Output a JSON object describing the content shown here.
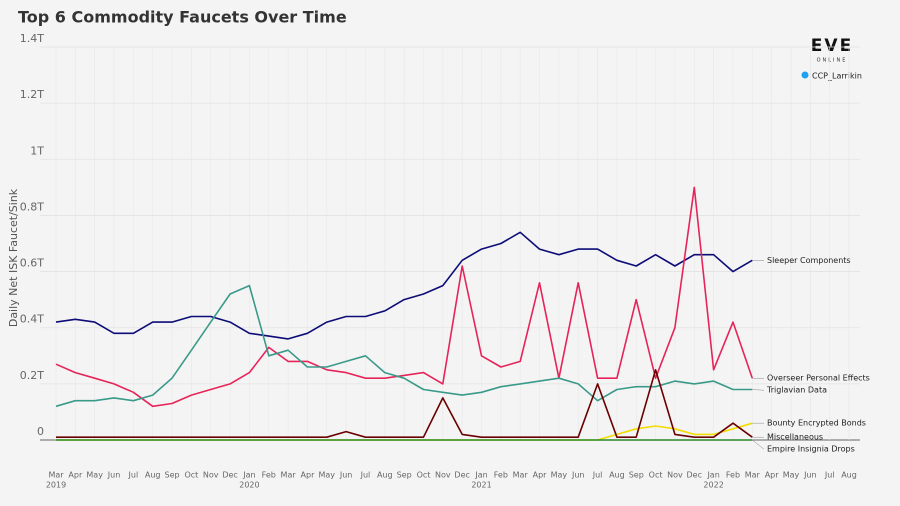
{
  "chart_data": {
    "type": "line",
    "title": "Top 6 Commodity Faucets Over Time",
    "ylabel": "Daily Net ISK Faucet/Sink",
    "brand": {
      "logo": "EVE",
      "sub": "ONLINE",
      "handle": "CCP_Larrikin"
    },
    "x": [
      "2019-03",
      "2019-04",
      "2019-05",
      "2019-06",
      "2019-07",
      "2019-08",
      "2019-09",
      "2019-10",
      "2019-11",
      "2019-12",
      "2020-01",
      "2020-02",
      "2020-03",
      "2020-04",
      "2020-05",
      "2020-06",
      "2020-07",
      "2020-08",
      "2020-09",
      "2020-10",
      "2020-11",
      "2020-12",
      "2021-01",
      "2021-02",
      "2021-03",
      "2021-04",
      "2021-05",
      "2021-06",
      "2021-07",
      "2021-08",
      "2021-09",
      "2021-10",
      "2021-11",
      "2021-12",
      "2022-01",
      "2022-02",
      "2022-03"
    ],
    "xlim": [
      "2019-03",
      "2022-08"
    ],
    "xticks": [
      {
        "value": "2019-03",
        "label": "Mar"
      },
      {
        "value": "2019-04",
        "label": "Apr"
      },
      {
        "value": "2019-05",
        "label": "May"
      },
      {
        "value": "2019-06",
        "label": "Jun"
      },
      {
        "value": "2019-07",
        "label": "Jul"
      },
      {
        "value": "2019-08",
        "label": "Aug"
      },
      {
        "value": "2019-09",
        "label": "Sep"
      },
      {
        "value": "2019-10",
        "label": "Oct"
      },
      {
        "value": "2019-11",
        "label": "Nov"
      },
      {
        "value": "2019-12",
        "label": "Dec"
      },
      {
        "value": "2020-01",
        "label": "Jan"
      },
      {
        "value": "2020-02",
        "label": "Feb"
      },
      {
        "value": "2020-03",
        "label": "Mar"
      },
      {
        "value": "2020-04",
        "label": "Apr"
      },
      {
        "value": "2020-05",
        "label": "May"
      },
      {
        "value": "2020-06",
        "label": "Jun"
      },
      {
        "value": "2020-07",
        "label": "Jul"
      },
      {
        "value": "2020-08",
        "label": "Aug"
      },
      {
        "value": "2020-09",
        "label": "Sep"
      },
      {
        "value": "2020-10",
        "label": "Oct"
      },
      {
        "value": "2020-11",
        "label": "Nov"
      },
      {
        "value": "2020-12",
        "label": "Dec"
      },
      {
        "value": "2021-01",
        "label": "Jan"
      },
      {
        "value": "2021-02",
        "label": "Feb"
      },
      {
        "value": "2021-03",
        "label": "Mar"
      },
      {
        "value": "2021-04",
        "label": "Apr"
      },
      {
        "value": "2021-05",
        "label": "May"
      },
      {
        "value": "2021-06",
        "label": "Jun"
      },
      {
        "value": "2021-07",
        "label": "Jul"
      },
      {
        "value": "2021-08",
        "label": "Aug"
      },
      {
        "value": "2021-09",
        "label": "Sep"
      },
      {
        "value": "2021-10",
        "label": "Oct"
      },
      {
        "value": "2021-11",
        "label": "Nov"
      },
      {
        "value": "2021-12",
        "label": "Dec"
      },
      {
        "value": "2022-01",
        "label": "Jan"
      },
      {
        "value": "2022-02",
        "label": "Feb"
      },
      {
        "value": "2022-03",
        "label": "Mar"
      },
      {
        "value": "2022-04",
        "label": "Apr"
      },
      {
        "value": "2022-05",
        "label": "May"
      },
      {
        "value": "2022-06",
        "label": "Jun"
      },
      {
        "value": "2022-07",
        "label": "Jul"
      },
      {
        "value": "2022-08",
        "label": "Aug"
      }
    ],
    "year_labels": [
      {
        "value": "2019-03",
        "label": "2019"
      },
      {
        "value": "2020-01",
        "label": "2020"
      },
      {
        "value": "2021-01",
        "label": "2021"
      },
      {
        "value": "2022-01",
        "label": "2022"
      }
    ],
    "ylim": [
      0,
      1.4
    ],
    "yticks": [
      0,
      {
        "value": 0.2,
        "label": "0.2T"
      },
      {
        "value": 0.4,
        "label": "0.4T"
      },
      {
        "value": 0.6,
        "label": "0.6T"
      },
      {
        "value": 0.8,
        "label": "0.8T"
      },
      {
        "value": 1,
        "label": "1T"
      },
      {
        "value": 1.2,
        "label": "1.2T"
      },
      {
        "value": 1.4,
        "label": "1.4T"
      }
    ],
    "grid": true,
    "series": [
      {
        "name": "Sleeper Components",
        "color": "#0c0c78",
        "values": [
          0.42,
          0.43,
          0.42,
          0.38,
          0.38,
          0.42,
          0.42,
          0.44,
          0.44,
          0.42,
          0.38,
          0.37,
          0.36,
          0.38,
          0.42,
          0.44,
          0.44,
          0.46,
          0.5,
          0.52,
          0.55,
          0.64,
          0.68,
          0.7,
          0.74,
          0.68,
          0.66,
          0.68,
          0.68,
          0.64,
          0.62,
          0.66,
          0.62,
          0.66,
          0.66,
          0.6,
          0.64
        ]
      },
      {
        "name": "Overseer Personal Effects",
        "color": "#e6245a",
        "values": [
          0.27,
          0.24,
          0.22,
          0.2,
          0.17,
          0.12,
          0.13,
          0.16,
          0.18,
          0.2,
          0.24,
          0.33,
          0.28,
          0.28,
          0.25,
          0.24,
          0.22,
          0.22,
          0.23,
          0.24,
          0.2,
          0.62,
          0.3,
          0.26,
          0.28,
          0.56,
          0.22,
          0.56,
          0.22,
          0.22,
          0.5,
          0.22,
          0.4,
          0.9,
          0.25,
          0.42,
          0.22
        ]
      },
      {
        "name": "Triglavian Data",
        "color": "#3a9a8a",
        "values": [
          0.12,
          0.14,
          0.14,
          0.15,
          0.14,
          0.16,
          0.22,
          0.32,
          0.42,
          0.52,
          0.55,
          0.3,
          0.32,
          0.26,
          0.26,
          0.28,
          0.3,
          0.24,
          0.22,
          0.18,
          0.17,
          0.16,
          0.17,
          0.19,
          0.2,
          0.21,
          0.22,
          0.2,
          0.14,
          0.18,
          0.19,
          0.19,
          0.21,
          0.2,
          0.21,
          0.18,
          0.18
        ]
      },
      {
        "name": "Bounty Encrypted Bonds",
        "color": "#f2dc00",
        "values": [
          0,
          0,
          0,
          0,
          0,
          0,
          0,
          0,
          0,
          0,
          0,
          0,
          0,
          0,
          0,
          0,
          0,
          0,
          0,
          0,
          0,
          0,
          0,
          0,
          0,
          0,
          0,
          0,
          0,
          0.02,
          0.04,
          0.05,
          0.04,
          0.02,
          0.02,
          0.04,
          0.06
        ]
      },
      {
        "name": "Miscellaneous",
        "color": "#6a0000",
        "values": [
          0.01,
          0.01,
          0.01,
          0.01,
          0.01,
          0.01,
          0.01,
          0.01,
          0.01,
          0.01,
          0.01,
          0.01,
          0.01,
          0.01,
          0.01,
          0.03,
          0.01,
          0.01,
          0.01,
          0.01,
          0.15,
          0.02,
          0.01,
          0.01,
          0.01,
          0.01,
          0.01,
          0.01,
          0.2,
          0.01,
          0.01,
          0.25,
          0.02,
          0.01,
          0.01,
          0.06,
          0.01
        ]
      },
      {
        "name": "Empire Insignia Drops",
        "color": "#2a8a2a",
        "values": [
          0,
          0,
          0,
          0,
          0,
          0,
          0,
          0,
          0,
          0,
          0,
          0,
          0,
          0,
          0,
          0,
          0,
          0,
          0,
          0,
          0,
          0,
          0,
          0,
          0,
          0,
          0,
          0,
          0,
          0,
          0,
          0,
          0,
          0,
          0,
          0,
          0
        ]
      }
    ]
  }
}
